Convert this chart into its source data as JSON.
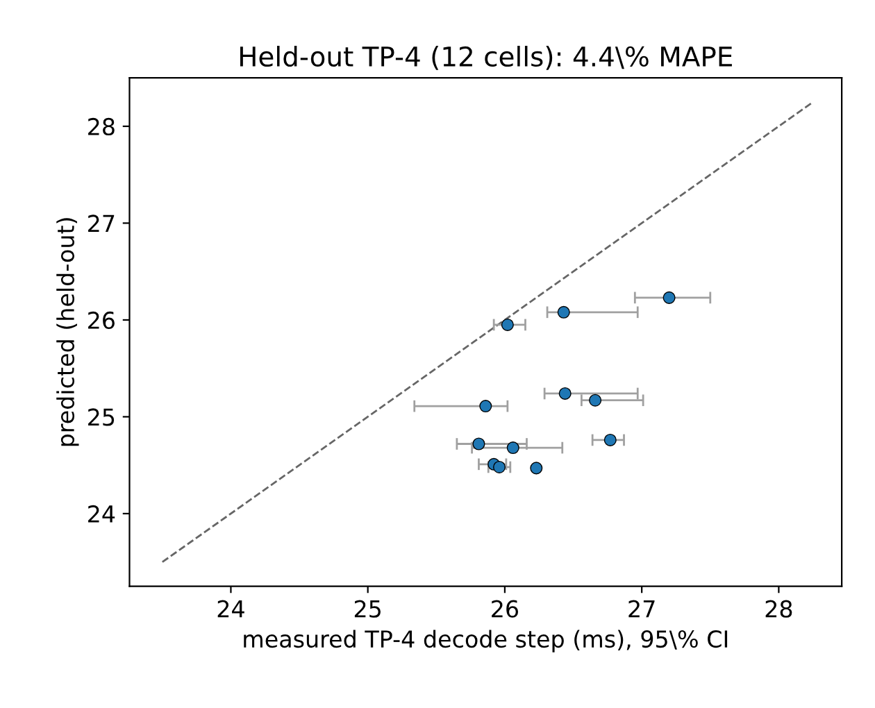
{
  "chart_data": {
    "type": "scatter",
    "title": "Held-out TP-4 (12 cells): 4.4\\% MAPE",
    "xlabel": "measured TP-4 decode step (ms), 95\\% CI",
    "ylabel": "predicted (held-out)",
    "xlim": [
      23.26,
      28.46
    ],
    "ylim": [
      23.25,
      28.5
    ],
    "xticks": [
      24,
      25,
      26,
      27,
      28
    ],
    "yticks": [
      24,
      25,
      26,
      27,
      28
    ],
    "grid": false,
    "legend": false,
    "marker": "circle",
    "series": [
      {
        "type": "line",
        "color": "#666666",
        "line_style": "dashed",
        "marker": "none",
        "x": [
          23.5,
          28.25
        ],
        "values": [
          23.5,
          28.25
        ]
      },
      {
        "color": "#1f77b4",
        "x": [
          27.2,
          26.43,
          26.02,
          26.44,
          26.66,
          25.86,
          26.77,
          25.81,
          26.06,
          25.92,
          25.96,
          26.23
        ],
        "values": [
          26.23,
          26.08,
          25.95,
          25.24,
          25.17,
          25.11,
          24.76,
          24.72,
          24.68,
          24.51,
          24.48,
          24.47
        ],
        "xerrors": [
          [
            26.95,
            27.5
          ],
          [
            26.31,
            26.97
          ],
          [
            25.92,
            26.15
          ],
          [
            26.29,
            26.97
          ],
          [
            26.56,
            27.01
          ],
          [
            25.34,
            26.02
          ],
          [
            26.64,
            26.87
          ],
          [
            25.65,
            26.16
          ],
          [
            25.76,
            26.42
          ],
          [
            25.81,
            26.01
          ],
          [
            25.88,
            26.04
          ],
          null
        ]
      }
    ]
  }
}
